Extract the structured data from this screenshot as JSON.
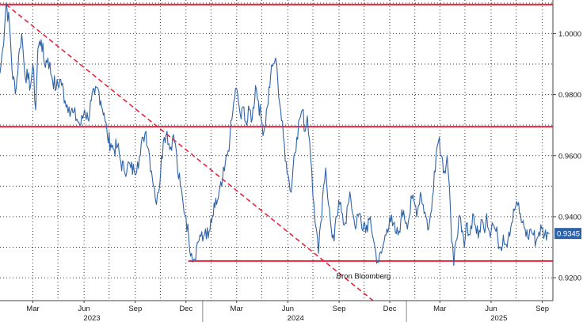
{
  "chart_data": {
    "type": "line",
    "grid": true,
    "y_axis_side": "right",
    "ylim": [
      0.9125,
      1.011
    ],
    "y_ticks": [
      {
        "value": 0.92,
        "label": "0.9200"
      },
      {
        "value": 0.94,
        "label": "0.9400"
      },
      {
        "value": 0.96,
        "label": "0.9600"
      },
      {
        "value": 0.98,
        "label": "0.9800"
      },
      {
        "value": 1.0,
        "label": "1.0000"
      }
    ],
    "xlim": [
      "2023-01-01",
      "2025-09-20"
    ],
    "x_ticks": [
      {
        "date": "2023-03-01",
        "label": "Mar"
      },
      {
        "date": "2023-06-01",
        "label": "Jun"
      },
      {
        "date": "2023-09-01",
        "label": "Sep"
      },
      {
        "date": "2023-12-01",
        "label": "Dec"
      },
      {
        "date": "2024-03-01",
        "label": "Mar"
      },
      {
        "date": "2024-06-01",
        "label": "Jun"
      },
      {
        "date": "2024-09-01",
        "label": "Sep"
      },
      {
        "date": "2024-12-01",
        "label": "Dec"
      },
      {
        "date": "2025-03-01",
        "label": "Mar"
      },
      {
        "date": "2025-06-01",
        "label": "Jun"
      },
      {
        "date": "2025-09-01",
        "label": "Sep"
      }
    ],
    "year_labels": [
      {
        "date": "2023-06-15",
        "label": "2023"
      },
      {
        "date": "2024-06-15",
        "label": "2024"
      },
      {
        "date": "2025-06-15",
        "label": "2025"
      }
    ],
    "year_dividers": [
      "2023-12-31",
      "2024-12-31"
    ],
    "series": [
      {
        "color": "#2f63a8",
        "points": [
          [
            "2023-01-01",
            0.987
          ],
          [
            "2023-01-06",
            0.995
          ],
          [
            "2023-01-12",
            1.01
          ],
          [
            "2023-01-18",
            1.003
          ],
          [
            "2023-01-24",
            0.985
          ],
          [
            "2023-01-30",
            0.982
          ],
          [
            "2023-02-05",
            0.995
          ],
          [
            "2023-02-09",
            1.0
          ],
          [
            "2023-02-14",
            0.988
          ],
          [
            "2023-02-20",
            0.985
          ],
          [
            "2023-02-25",
            0.983
          ],
          [
            "2023-03-01",
            0.99
          ],
          [
            "2023-03-06",
            0.975
          ],
          [
            "2023-03-10",
            0.995
          ],
          [
            "2023-03-16",
            0.998
          ],
          [
            "2023-03-22",
            0.99
          ],
          [
            "2023-03-28",
            0.992
          ],
          [
            "2023-04-04",
            0.986
          ],
          [
            "2023-04-12",
            0.982
          ],
          [
            "2023-04-20",
            0.985
          ],
          [
            "2023-04-28",
            0.978
          ],
          [
            "2023-05-05",
            0.976
          ],
          [
            "2023-05-12",
            0.974
          ],
          [
            "2023-05-19",
            0.972
          ],
          [
            "2023-05-26",
            0.97
          ],
          [
            "2023-06-02",
            0.975
          ],
          [
            "2023-06-08",
            0.972
          ],
          [
            "2023-06-14",
            0.978
          ],
          [
            "2023-06-20",
            0.98
          ],
          [
            "2023-06-26",
            0.982
          ],
          [
            "2023-07-01",
            0.978
          ],
          [
            "2023-07-07",
            0.974
          ],
          [
            "2023-07-13",
            0.966
          ],
          [
            "2023-07-19",
            0.964
          ],
          [
            "2023-07-25",
            0.962
          ],
          [
            "2023-07-31",
            0.963
          ],
          [
            "2023-08-06",
            0.958
          ],
          [
            "2023-08-12",
            0.955
          ],
          [
            "2023-08-18",
            0.957
          ],
          [
            "2023-08-24",
            0.956
          ],
          [
            "2023-08-30",
            0.955
          ],
          [
            "2023-09-05",
            0.958
          ],
          [
            "2023-09-10",
            0.96
          ],
          [
            "2023-09-15",
            0.966
          ],
          [
            "2023-09-20",
            0.968
          ],
          [
            "2023-09-25",
            0.962
          ],
          [
            "2023-09-30",
            0.955
          ],
          [
            "2023-10-05",
            0.95
          ],
          [
            "2023-10-09",
            0.944
          ],
          [
            "2023-10-13",
            0.948
          ],
          [
            "2023-10-18",
            0.96
          ],
          [
            "2023-10-23",
            0.966
          ],
          [
            "2023-10-28",
            0.968
          ],
          [
            "2023-11-02",
            0.962
          ],
          [
            "2023-11-07",
            0.966
          ],
          [
            "2023-11-12",
            0.964
          ],
          [
            "2023-11-16",
            0.955
          ],
          [
            "2023-11-21",
            0.95
          ],
          [
            "2023-11-26",
            0.944
          ],
          [
            "2023-12-01",
            0.94
          ],
          [
            "2023-12-06",
            0.933
          ],
          [
            "2023-12-11",
            0.928
          ],
          [
            "2023-12-15",
            0.926
          ],
          [
            "2023-12-20",
            0.93
          ],
          [
            "2023-12-26",
            0.934
          ],
          [
            "2023-12-31",
            0.932
          ],
          [
            "2024-01-05",
            0.936
          ],
          [
            "2024-01-10",
            0.933
          ],
          [
            "2024-01-16",
            0.938
          ],
          [
            "2024-01-22",
            0.943
          ],
          [
            "2024-01-28",
            0.946
          ],
          [
            "2024-02-03",
            0.95
          ],
          [
            "2024-02-08",
            0.955
          ],
          [
            "2024-02-13",
            0.96
          ],
          [
            "2024-02-18",
            0.966
          ],
          [
            "2024-02-23",
            0.974
          ],
          [
            "2024-02-28",
            0.982
          ],
          [
            "2024-03-04",
            0.978
          ],
          [
            "2024-03-09",
            0.972
          ],
          [
            "2024-03-14",
            0.976
          ],
          [
            "2024-03-19",
            0.97
          ],
          [
            "2024-03-24",
            0.975
          ],
          [
            "2024-03-29",
            0.972
          ],
          [
            "2024-04-04",
            0.983
          ],
          [
            "2024-04-09",
            0.978
          ],
          [
            "2024-04-14",
            0.972
          ],
          [
            "2024-04-19",
            0.968
          ],
          [
            "2024-04-25",
            0.976
          ],
          [
            "2024-05-01",
            0.986
          ],
          [
            "2024-05-06",
            0.99
          ],
          [
            "2024-05-10",
            0.992
          ],
          [
            "2024-05-14",
            0.984
          ],
          [
            "2024-05-19",
            0.975
          ],
          [
            "2024-05-24",
            0.966
          ],
          [
            "2024-05-29",
            0.958
          ],
          [
            "2024-06-03",
            0.952
          ],
          [
            "2024-06-07",
            0.948
          ],
          [
            "2024-06-12",
            0.96
          ],
          [
            "2024-06-17",
            0.966
          ],
          [
            "2024-06-22",
            0.972
          ],
          [
            "2024-06-27",
            0.975
          ],
          [
            "2024-07-02",
            0.968
          ],
          [
            "2024-07-06",
            0.973
          ],
          [
            "2024-07-10",
            0.965
          ],
          [
            "2024-07-14",
            0.955
          ],
          [
            "2024-07-18",
            0.944
          ],
          [
            "2024-07-22",
            0.936
          ],
          [
            "2024-07-26",
            0.928
          ],
          [
            "2024-07-30",
            0.938
          ],
          [
            "2024-08-04",
            0.95
          ],
          [
            "2024-08-08",
            0.956
          ],
          [
            "2024-08-13",
            0.944
          ],
          [
            "2024-08-18",
            0.936
          ],
          [
            "2024-08-23",
            0.932
          ],
          [
            "2024-08-28",
            0.94
          ],
          [
            "2024-09-02",
            0.944
          ],
          [
            "2024-09-07",
            0.941
          ],
          [
            "2024-09-12",
            0.938
          ],
          [
            "2024-09-17",
            0.944
          ],
          [
            "2024-09-22",
            0.946
          ],
          [
            "2024-09-27",
            0.94
          ],
          [
            "2024-10-02",
            0.937
          ],
          [
            "2024-10-07",
            0.941
          ],
          [
            "2024-10-12",
            0.936
          ],
          [
            "2024-10-17",
            0.938
          ],
          [
            "2024-10-22",
            0.935
          ],
          [
            "2024-10-27",
            0.94
          ],
          [
            "2024-11-01",
            0.933
          ],
          [
            "2024-11-06",
            0.928
          ],
          [
            "2024-11-11",
            0.925
          ],
          [
            "2024-11-16",
            0.928
          ],
          [
            "2024-11-21",
            0.932
          ],
          [
            "2024-11-26",
            0.936
          ],
          [
            "2024-12-01",
            0.94
          ],
          [
            "2024-12-06",
            0.937
          ],
          [
            "2024-12-11",
            0.935
          ],
          [
            "2024-12-16",
            0.934
          ],
          [
            "2024-12-21",
            0.939
          ],
          [
            "2024-12-26",
            0.942
          ],
          [
            "2024-12-31",
            0.938
          ],
          [
            "2025-01-05",
            0.94
          ],
          [
            "2025-01-10",
            0.946
          ],
          [
            "2025-01-15",
            0.944
          ],
          [
            "2025-01-20",
            0.942
          ],
          [
            "2025-01-25",
            0.948
          ],
          [
            "2025-01-30",
            0.944
          ],
          [
            "2025-02-04",
            0.94
          ],
          [
            "2025-02-09",
            0.936
          ],
          [
            "2025-02-14",
            0.942
          ],
          [
            "2025-02-19",
            0.955
          ],
          [
            "2025-02-24",
            0.963
          ],
          [
            "2025-02-28",
            0.966
          ],
          [
            "2025-03-04",
            0.96
          ],
          [
            "2025-03-09",
            0.955
          ],
          [
            "2025-03-14",
            0.96
          ],
          [
            "2025-03-18",
            0.95
          ],
          [
            "2025-03-22",
            0.932
          ],
          [
            "2025-03-26",
            0.924
          ],
          [
            "2025-03-30",
            0.932
          ],
          [
            "2025-04-04",
            0.94
          ],
          [
            "2025-04-09",
            0.935
          ],
          [
            "2025-04-14",
            0.93
          ],
          [
            "2025-04-19",
            0.938
          ],
          [
            "2025-04-24",
            0.934
          ],
          [
            "2025-04-29",
            0.941
          ],
          [
            "2025-05-04",
            0.937
          ],
          [
            "2025-05-09",
            0.933
          ],
          [
            "2025-05-14",
            0.939
          ],
          [
            "2025-05-19",
            0.936
          ],
          [
            "2025-05-24",
            0.941
          ],
          [
            "2025-05-29",
            0.935
          ],
          [
            "2025-06-03",
            0.938
          ],
          [
            "2025-06-08",
            0.936
          ],
          [
            "2025-06-13",
            0.933
          ],
          [
            "2025-06-18",
            0.93
          ],
          [
            "2025-06-23",
            0.934
          ],
          [
            "2025-06-28",
            0.931
          ],
          [
            "2025-07-03",
            0.935
          ],
          [
            "2025-07-08",
            0.938
          ],
          [
            "2025-07-13",
            0.942
          ],
          [
            "2025-07-17",
            0.945
          ],
          [
            "2025-07-22",
            0.941
          ],
          [
            "2025-07-27",
            0.938
          ],
          [
            "2025-08-01",
            0.936
          ],
          [
            "2025-08-06",
            0.933
          ],
          [
            "2025-08-11",
            0.936
          ],
          [
            "2025-08-16",
            0.934
          ],
          [
            "2025-08-21",
            0.932
          ],
          [
            "2025-08-26",
            0.935
          ],
          [
            "2025-08-31",
            0.936
          ],
          [
            "2025-09-05",
            0.934
          ],
          [
            "2025-09-10",
            0.935
          ],
          [
            "2025-09-14",
            0.9345
          ]
        ]
      }
    ],
    "resistance_lines": [
      {
        "value": 1.0095,
        "color": "#e8243c",
        "style": "solid"
      },
      {
        "value": 0.9695,
        "color": "#e8243c",
        "style": "solid"
      }
    ],
    "support_lines": [
      {
        "value": 0.9255,
        "color": "#e8243c",
        "style": "solid",
        "start": "2023-12-05"
      }
    ],
    "trend_line": {
      "color": "#e8243c",
      "style": "dashed",
      "from": [
        "2023-01-12",
        1.0095
      ],
      "to": [
        "2024-11-01",
        0.9125
      ]
    },
    "last_value": {
      "label": "0.9345",
      "value": 0.9345,
      "bg": "#2f63a8"
    },
    "source": "Bron Bloomberg"
  }
}
